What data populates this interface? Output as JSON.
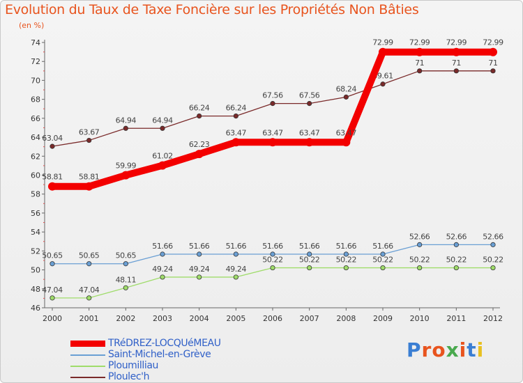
{
  "header": {
    "title": "Evolution du Taux de Taxe Foncière sur les Propriétés Non Bâties",
    "unit": "(en %)"
  },
  "logo": {
    "text": "Proxiti",
    "colors": [
      "#3a7ed3",
      "#e8541e",
      "#e8541e",
      "#49a94e",
      "#e8541e",
      "#3a7ed3",
      "#e8c020"
    ]
  },
  "chart_data": {
    "type": "line",
    "title": "Evolution du Taux de Taxe Foncière sur les Propriétés Non Bâties",
    "ylabel": "(en %)",
    "xlabel": "",
    "ylim": [
      46,
      74
    ],
    "y_ticks": [
      46,
      48,
      50,
      52,
      54,
      56,
      58,
      60,
      62,
      64,
      66,
      68,
      70,
      72,
      74
    ],
    "categories": [
      "2000",
      "2001",
      "2002",
      "2003",
      "2004",
      "2005",
      "2006",
      "2007",
      "2008",
      "2009",
      "2010",
      "2011",
      "2012"
    ],
    "grid": false,
    "legend_position": "bottom-left",
    "series": [
      {
        "name": "TRéDREZ-LOCQUéMEAU",
        "color": "#f30000",
        "bold": true,
        "values": [
          58.81,
          58.81,
          59.99,
          61.02,
          62.23,
          63.47,
          63.47,
          63.47,
          63.47,
          72.99,
          72.99,
          72.99,
          72.99
        ],
        "labels": [
          "58.81",
          "58.81",
          "59.99",
          "61.02",
          "62.23",
          "63.47",
          "63.47",
          "63.47",
          "63.47",
          "72.99",
          "72.99",
          "72.99",
          "72.99"
        ]
      },
      {
        "name": "Saint-Michel-en-Grève",
        "color": "#6a9fd4",
        "bold": false,
        "values": [
          50.65,
          50.65,
          50.65,
          51.66,
          51.66,
          51.66,
          51.66,
          51.66,
          51.66,
          51.66,
          52.66,
          52.66,
          52.66
        ],
        "labels": [
          "50.65",
          "50.65",
          "50.65",
          "51.66",
          "51.66",
          "51.66",
          "51.66",
          "51.66",
          "51.66",
          "51.66",
          "52.66",
          "52.66",
          "52.66"
        ]
      },
      {
        "name": "Ploumilliau",
        "color": "#9fdc6a",
        "bold": false,
        "values": [
          47.04,
          47.04,
          48.11,
          49.24,
          49.24,
          49.24,
          50.22,
          50.22,
          50.22,
          50.22,
          50.22,
          50.22,
          50.22
        ],
        "labels": [
          "47.04",
          "47.04",
          "48.11",
          "49.24",
          "49.24",
          "49.24",
          "50.22",
          "50.22",
          "50.22",
          "50.22",
          "50.22",
          "50.22",
          "50.22"
        ]
      },
      {
        "name": "Ploulec'h",
        "color": "#7a2a2a",
        "bold": false,
        "values": [
          63.04,
          63.67,
          64.94,
          64.94,
          66.24,
          66.24,
          67.56,
          67.56,
          68.24,
          69.61,
          71,
          71,
          71
        ],
        "labels": [
          "63.04",
          "63.67",
          "64.94",
          "64.94",
          "66.24",
          "66.24",
          "67.56",
          "67.56",
          "68.24",
          "69.61",
          "71",
          "71",
          "71"
        ]
      }
    ]
  }
}
